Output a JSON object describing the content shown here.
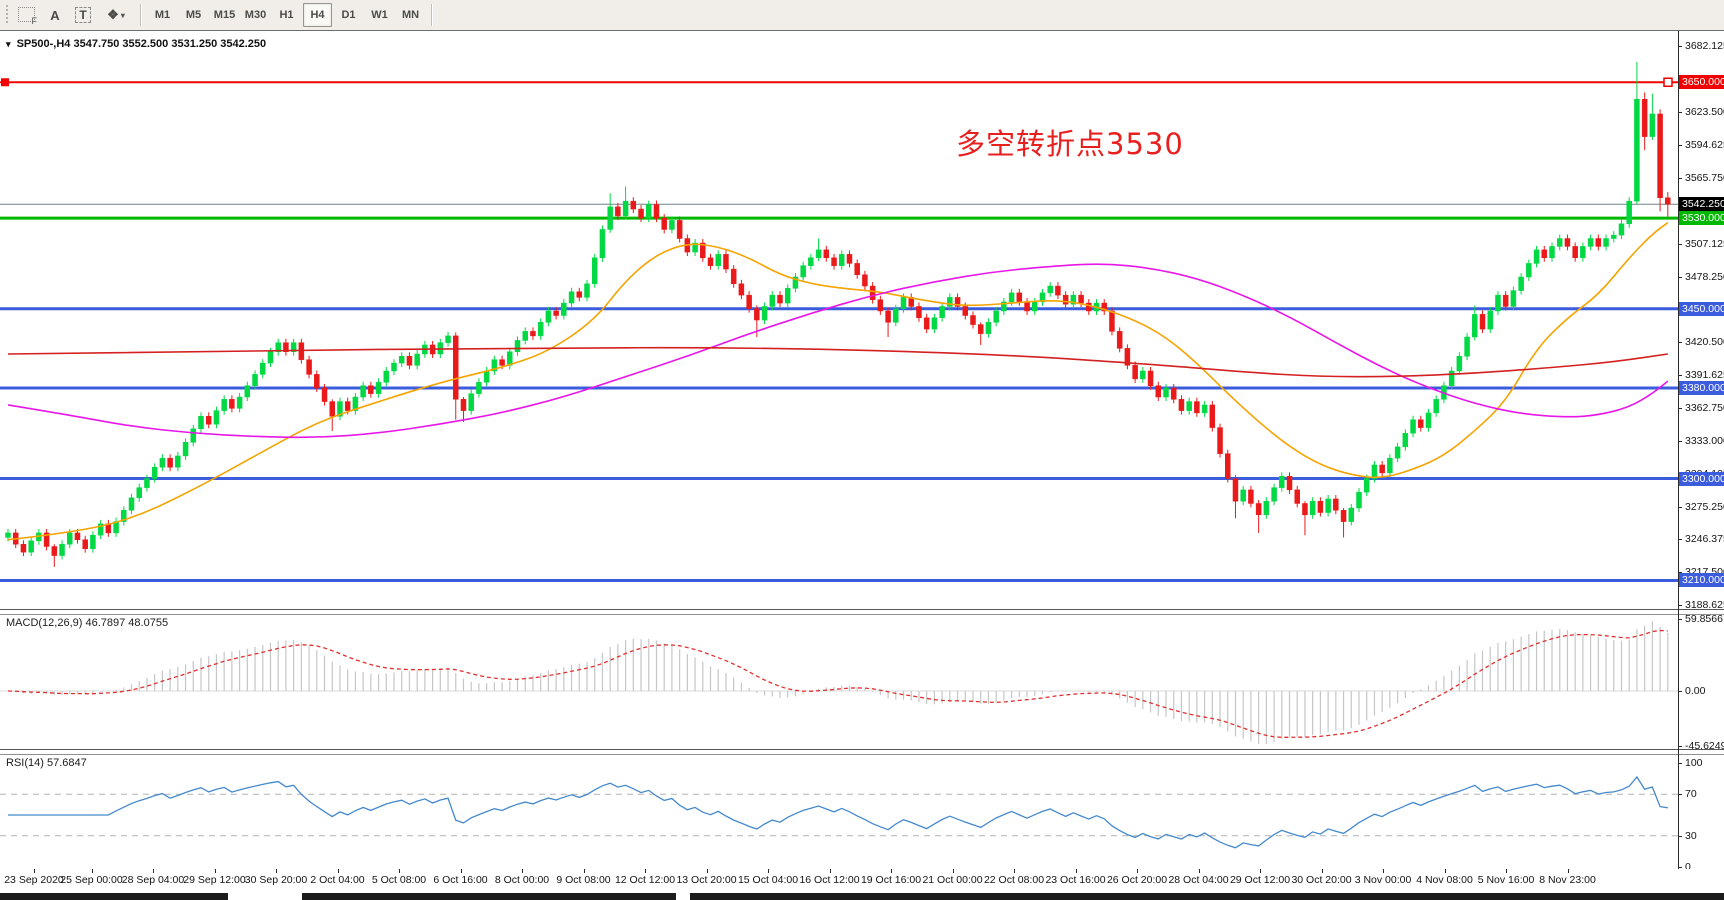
{
  "toolbar": {
    "icons": [
      {
        "id": "chart-profile-icon",
        "glyph": "F"
      },
      {
        "id": "cursor-a-icon",
        "glyph": "A"
      },
      {
        "id": "text-label-icon",
        "glyph": "T"
      },
      {
        "id": "draw-objects-icon",
        "glyph": "❖",
        "caret": "▾"
      }
    ],
    "timeframes": [
      "M1",
      "M5",
      "M15",
      "M30",
      "H1",
      "H4",
      "D1",
      "W1",
      "MN"
    ],
    "active_timeframe": "H4"
  },
  "chart": {
    "title_caret": "▾",
    "title_symbol": "SP500-,H4",
    "title_ohlc": "3547.750 3552.500 3531.250 3542.250",
    "annotation": {
      "text": "多空转折点3530",
      "color": "#e81f1f"
    },
    "macd_label": "MACD(12,26,9)",
    "macd_values": "46.7897 48.0755",
    "rsi_label": "RSI(14)",
    "rsi_value": "57.6847"
  },
  "price_axis": {
    "ticks": [
      "3682.125",
      "3623.500",
      "3594.625",
      "3565.750",
      "3507.125",
      "3478.250",
      "3420.500",
      "3391.625",
      "3362.750",
      "3333.000",
      "3304.125",
      "3275.250",
      "3246.375",
      "3217.500",
      "3188.625"
    ],
    "line_labels": [
      {
        "text": "3650.000",
        "type": "red"
      },
      {
        "text": "3542.250",
        "type": "current"
      },
      {
        "text": "3530.000",
        "type": "green"
      },
      {
        "text": "3450.000",
        "type": "blue"
      },
      {
        "text": "3380.000",
        "type": "blue"
      },
      {
        "text": "3300.000",
        "type": "blue"
      },
      {
        "text": "3210.000",
        "type": "blue"
      }
    ]
  },
  "macd_axis": [
    "59.8566",
    "0.00",
    "-45.6249"
  ],
  "rsi_axis": [
    {
      "text": "100",
      "v": 100
    },
    {
      "text": "70",
      "v": 70
    },
    {
      "text": "30",
      "v": 30
    },
    {
      "text": "0",
      "v": 0
    }
  ],
  "colors": {
    "bull": "#00d944",
    "bear": "#ea1a1a",
    "ma_fast": "#f5a300",
    "ma_mid": "#e816e8",
    "ma_slow": "#d42020",
    "macd_bar": "#c6c6c6",
    "macd_signal": "#e03030",
    "rsi": "#4489cc",
    "line_red": "#f20000",
    "line_green": "#00b800",
    "line_blue": "#3b5cdc",
    "line_current": "#73808c",
    "level_dash": "#b4b4b4"
  },
  "chart_data": {
    "type": "candlestick",
    "symbol": "SP500-",
    "period": "H4",
    "time_labels": [
      "23 Sep 2020",
      "25 Sep 00:00",
      "28 Sep 04:00",
      "29 Sep 12:00",
      "30 Sep 20:00",
      "2 Oct 04:00",
      "5 Oct 08:00",
      "6 Oct 16:00",
      "8 Oct 00:00",
      "9 Oct 08:00",
      "12 Oct 12:00",
      "13 Oct 20:00",
      "15 Oct 04:00",
      "16 Oct 12:00",
      "19 Oct 16:00",
      "21 Oct 00:00",
      "22 Oct 08:00",
      "23 Oct 16:00",
      "26 Oct 20:00",
      "28 Oct 04:00",
      "29 Oct 12:00",
      "30 Oct 20:00",
      "3 Nov 00:00",
      "4 Nov 08:00",
      "5 Nov 16:00",
      "8 Nov 23:00"
    ],
    "candles_per_label": 8,
    "first_open": 3248,
    "closes": [
      3252,
      3242,
      3235,
      3245,
      3252,
      3240,
      3232,
      3242,
      3252,
      3246,
      3238,
      3250,
      3260,
      3252,
      3262,
      3272,
      3283,
      3292,
      3300,
      3310,
      3318,
      3310,
      3320,
      3332,
      3344,
      3355,
      3348,
      3360,
      3370,
      3362,
      3372,
      3382,
      3392,
      3402,
      3412,
      3420,
      3412,
      3420,
      3405,
      3392,
      3380,
      3368,
      3355,
      3368,
      3360,
      3372,
      3382,
      3375,
      3385,
      3395,
      3402,
      3408,
      3400,
      3410,
      3418,
      3410,
      3420,
      3426,
      3370,
      3360,
      3375,
      3385,
      3395,
      3405,
      3400,
      3412,
      3422,
      3430,
      3426,
      3438,
      3448,
      3444,
      3455,
      3465,
      3460,
      3472,
      3495,
      3520,
      3540,
      3532,
      3545,
      3538,
      3530,
      3542,
      3530,
      3520,
      3528,
      3512,
      3500,
      3508,
      3495,
      3488,
      3498,
      3485,
      3472,
      3462,
      3450,
      3440,
      3452,
      3462,
      3455,
      3468,
      3478,
      3488,
      3495,
      3502,
      3495,
      3488,
      3498,
      3490,
      3480,
      3470,
      3458,
      3448,
      3438,
      3450,
      3460,
      3452,
      3442,
      3432,
      3442,
      3452,
      3460,
      3452,
      3444,
      3436,
      3428,
      3438,
      3448,
      3456,
      3464,
      3456,
      3448,
      3456,
      3464,
      3470,
      3462,
      3454,
      3462,
      3455,
      3448,
      3455,
      3448,
      3430,
      3415,
      3400,
      3388,
      3395,
      3382,
      3372,
      3380,
      3370,
      3360,
      3368,
      3358,
      3365,
      3345,
      3322,
      3300,
      3280,
      3290,
      3278,
      3268,
      3280,
      3292,
      3302,
      3290,
      3278,
      3268,
      3280,
      3270,
      3282,
      3272,
      3262,
      3274,
      3288,
      3300,
      3312,
      3305,
      3318,
      3328,
      3340,
      3352,
      3345,
      3358,
      3370,
      3382,
      3395,
      3408,
      3425,
      3445,
      3432,
      3448,
      3462,
      3452,
      3466,
      3478,
      3490,
      3502,
      3495,
      3505,
      3512,
      3505,
      3495,
      3505,
      3512,
      3505,
      3512,
      3515,
      3525,
      3545,
      3635,
      3602,
      3622,
      3548,
      3542.25
    ],
    "default_wick": 3.5,
    "wick_overrides": {
      "6": [
        2,
        10
      ],
      "42": [
        2,
        13
      ],
      "58": [
        3,
        18
      ],
      "59": [
        2,
        10
      ],
      "78": [
        12,
        3
      ],
      "80": [
        13,
        3
      ],
      "97": [
        3,
        15
      ],
      "105": [
        10,
        3
      ],
      "114": [
        3,
        13
      ],
      "126": [
        2,
        10
      ],
      "159": [
        3,
        15
      ],
      "162": [
        3,
        16
      ],
      "168": [
        2,
        18
      ],
      "173": [
        2,
        14
      ],
      "190": [
        8,
        3
      ],
      "211": [
        33,
        3
      ],
      "212": [
        6,
        12
      ],
      "213": [
        18,
        3
      ],
      "214": [
        4,
        12
      ],
      "215": [
        5,
        11
      ]
    },
    "hlines": [
      {
        "price": 3650.0,
        "type": "red",
        "width": 2,
        "end_markers": true
      },
      {
        "price": 3542.25,
        "type": "current",
        "width": 1
      },
      {
        "price": 3530.0,
        "type": "green",
        "width": 3
      },
      {
        "price": 3450.0,
        "type": "blue",
        "width": 3
      },
      {
        "price": 3380.0,
        "type": "blue",
        "width": 3
      },
      {
        "price": 3300.0,
        "type": "blue",
        "width": 3
      },
      {
        "price": 3210.0,
        "type": "blue",
        "width": 3
      }
    ],
    "moving_averages": [
      {
        "name": "ma-fast-orange",
        "points": [
          [
            0,
            3246
          ],
          [
            8,
            3252
          ],
          [
            16,
            3264
          ],
          [
            24,
            3290
          ],
          [
            32,
            3320
          ],
          [
            40,
            3350
          ],
          [
            48,
            3368
          ],
          [
            56,
            3385
          ],
          [
            64,
            3398
          ],
          [
            70,
            3412
          ],
          [
            76,
            3440
          ],
          [
            80,
            3475
          ],
          [
            84,
            3498
          ],
          [
            88,
            3508
          ],
          [
            92,
            3505
          ],
          [
            96,
            3495
          ],
          [
            100,
            3480
          ],
          [
            104,
            3472
          ],
          [
            108,
            3468
          ],
          [
            113,
            3465
          ],
          [
            118,
            3458
          ],
          [
            124,
            3452
          ],
          [
            130,
            3455
          ],
          [
            136,
            3458
          ],
          [
            141,
            3452
          ],
          [
            146,
            3440
          ],
          [
            150,
            3425
          ],
          [
            154,
            3402
          ],
          [
            158,
            3375
          ],
          [
            162,
            3350
          ],
          [
            166,
            3328
          ],
          [
            170,
            3312
          ],
          [
            174,
            3303
          ],
          [
            178,
            3300
          ],
          [
            182,
            3308
          ],
          [
            186,
            3320
          ],
          [
            190,
            3342
          ],
          [
            194,
            3368
          ],
          [
            198,
            3415
          ],
          [
            202,
            3442
          ],
          [
            206,
            3462
          ],
          [
            210,
            3495
          ],
          [
            213,
            3516
          ],
          [
            215,
            3526
          ]
        ]
      },
      {
        "name": "ma-mid-magenta",
        "points": [
          [
            0,
            3365
          ],
          [
            8,
            3356
          ],
          [
            16,
            3346
          ],
          [
            24,
            3340
          ],
          [
            32,
            3337
          ],
          [
            40,
            3336
          ],
          [
            48,
            3340
          ],
          [
            56,
            3348
          ],
          [
            64,
            3358
          ],
          [
            72,
            3372
          ],
          [
            80,
            3390
          ],
          [
            88,
            3408
          ],
          [
            96,
            3428
          ],
          [
            104,
            3446
          ],
          [
            112,
            3462
          ],
          [
            120,
            3474
          ],
          [
            128,
            3483
          ],
          [
            136,
            3488
          ],
          [
            142,
            3490
          ],
          [
            148,
            3486
          ],
          [
            154,
            3477
          ],
          [
            160,
            3462
          ],
          [
            166,
            3443
          ],
          [
            172,
            3420
          ],
          [
            178,
            3398
          ],
          [
            184,
            3380
          ],
          [
            190,
            3366
          ],
          [
            196,
            3357
          ],
          [
            202,
            3354
          ],
          [
            206,
            3356
          ],
          [
            210,
            3363
          ],
          [
            213,
            3375
          ],
          [
            215,
            3386
          ]
        ]
      },
      {
        "name": "ma-slow-red",
        "points": [
          [
            0,
            3410
          ],
          [
            32,
            3413
          ],
          [
            64,
            3415
          ],
          [
            96,
            3416
          ],
          [
            128,
            3410
          ],
          [
            150,
            3400
          ],
          [
            160,
            3394
          ],
          [
            170,
            3390
          ],
          [
            180,
            3390
          ],
          [
            190,
            3393
          ],
          [
            200,
            3398
          ],
          [
            208,
            3403
          ],
          [
            215,
            3410
          ]
        ]
      }
    ],
    "macd": {
      "params": [
        12,
        26,
        9
      ],
      "current": 46.7897,
      "signal_current": 48.0755,
      "axis_max": 59.8566,
      "axis_min": -45.6249
    },
    "rsi": {
      "period": 14,
      "current": 57.6847,
      "levels": [
        70,
        30
      ],
      "range": [
        0,
        100
      ]
    }
  },
  "bottom_strip_segments": [
    [
      0,
      228
    ],
    [
      302,
      676
    ],
    [
      690,
      1724
    ]
  ]
}
